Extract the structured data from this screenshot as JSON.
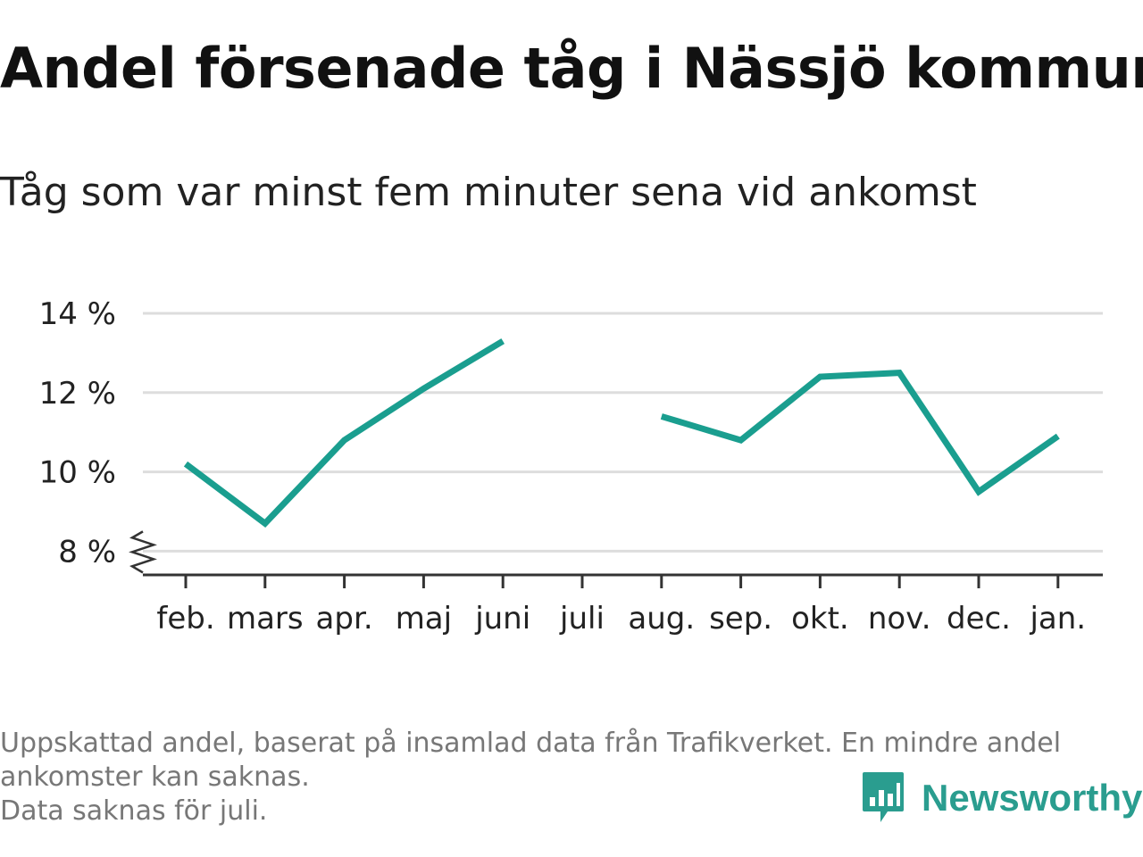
{
  "title": "Andel försenade tåg i Nässjö kommun",
  "subtitle": "Tåg som var minst fem minuter sena vid ankomst",
  "footer": {
    "note_line1": "Uppskattad andel, baserat på insamlad data från Trafikverket. En mindre andel",
    "note_line2": "ankomster kan saknas.",
    "note_line3": "Data saknas för juli."
  },
  "brand": {
    "name": "Newsworthy",
    "icon": "newsworthy-chart-bubble-icon",
    "color": "#2a9d8f"
  },
  "chart_data": {
    "type": "line",
    "categories": [
      "feb.",
      "mars",
      "apr.",
      "maj",
      "juni",
      "juli",
      "aug.",
      "sep.",
      "okt.",
      "nov.",
      "dec.",
      "jan."
    ],
    "series": [
      {
        "values": [
          10.2,
          8.7,
          10.8,
          12.1,
          13.3,
          null,
          11.4,
          10.8,
          12.4,
          12.5,
          9.5,
          10.9
        ]
      }
    ],
    "y_ticks": [
      8,
      10,
      12,
      14
    ],
    "y_tick_labels": [
      "8 %",
      "10 %",
      "12 %",
      "14 %"
    ],
    "ylim": [
      7.4,
      14
    ],
    "y_axis_break": true,
    "grid": true,
    "line_color": "#1a9e8f",
    "grid_color": "#dddddd",
    "axis_color": "#333333"
  }
}
